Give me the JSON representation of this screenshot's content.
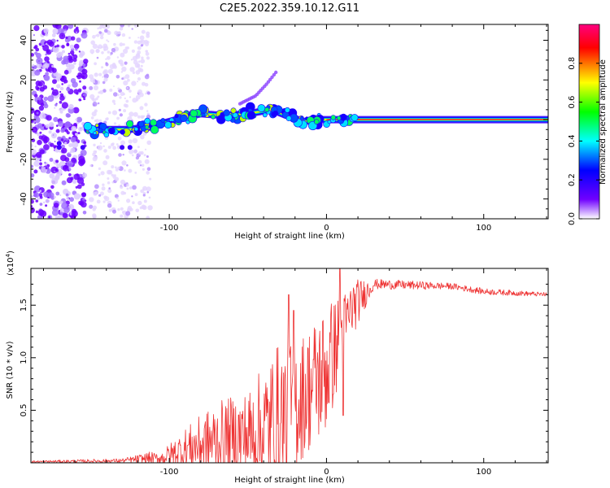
{
  "figure": {
    "title": "C2E5.2022.359.10.12.G11"
  },
  "chart_data": [
    {
      "type": "heatmap",
      "xlabel": "Height of straight line (km)",
      "ylabel": "Frequency (Hz)",
      "xlim": [
        -188,
        141
      ],
      "ylim": [
        -50,
        48
      ],
      "xticks": [
        -100,
        0,
        100
      ],
      "xtick_labels": [
        "-100",
        "0",
        "100"
      ],
      "yticks": [
        -40,
        -20,
        0,
        20,
        40
      ],
      "ytick_labels": [
        "-40",
        "-20",
        "0",
        "20",
        "40"
      ],
      "colorbar": {
        "label": "Normalized spectral amplitude",
        "range": [
          0.0,
          1.0
        ],
        "ticks": [
          0.0,
          0.2,
          0.4,
          0.6,
          0.8
        ],
        "tick_labels": [
          "0.0",
          "0.2",
          "0.4",
          "0.6",
          "0.8"
        ],
        "colors": [
          "#ffffff",
          "#7000ff",
          "#0000ff",
          "#00ffff",
          "#00ff00",
          "#ffff00",
          "#ff0000",
          "#ff0080"
        ]
      },
      "main_band": [
        {
          "x": -152,
          "f": -5
        },
        {
          "x": -140,
          "f": -5
        },
        {
          "x": -125,
          "f": -5
        },
        {
          "x": -110,
          "f": -3
        },
        {
          "x": -95,
          "f": 0
        },
        {
          "x": -80,
          "f": 3
        },
        {
          "x": -65,
          "f": 2
        },
        {
          "x": -50,
          "f": 3
        },
        {
          "x": -35,
          "f": 5
        },
        {
          "x": -25,
          "f": 2
        },
        {
          "x": -15,
          "f": -1
        },
        {
          "x": -5,
          "f": 0
        },
        {
          "x": 5,
          "f": 0
        },
        {
          "x": 141,
          "f": 0
        }
      ],
      "branch": [
        {
          "x": -55,
          "f": 8
        },
        {
          "x": -45,
          "f": 12
        },
        {
          "x": -38,
          "f": 18
        },
        {
          "x": -32,
          "f": 24
        }
      ]
    },
    {
      "type": "line",
      "xlabel": "Height of straight line (km)",
      "ylabel": "SNR (10 * v/v)",
      "y_multiplier": "(x10",
      "y_multiplier_exp": "4",
      "y_multiplier_close": ")",
      "xlim": [
        -188,
        141
      ],
      "ylim": [
        0,
        1.85
      ],
      "xticks": [
        -100,
        0,
        100
      ],
      "xtick_labels": [
        "-100",
        "0",
        "100"
      ],
      "yticks": [
        0.5,
        1.0,
        1.5
      ],
      "ytick_labels": [
        "0.5",
        "1.0",
        "1.5"
      ],
      "color": "#ee3333",
      "envelope": [
        {
          "x": -188,
          "base": 0.01,
          "amp": 0.01
        },
        {
          "x": -130,
          "base": 0.02,
          "amp": 0.02
        },
        {
          "x": -105,
          "base": 0.05,
          "amp": 0.08
        },
        {
          "x": -90,
          "base": 0.15,
          "amp": 0.25
        },
        {
          "x": -70,
          "base": 0.25,
          "amp": 0.45
        },
        {
          "x": -50,
          "base": 0.3,
          "amp": 0.55
        },
        {
          "x": -30,
          "base": 0.45,
          "amp": 1.0
        },
        {
          "x": -15,
          "base": 0.7,
          "amp": 0.75
        },
        {
          "x": 0,
          "base": 0.95,
          "amp": 0.8
        },
        {
          "x": 15,
          "base": 1.45,
          "amp": 0.3
        },
        {
          "x": 30,
          "base": 1.7,
          "amp": 0.05
        },
        {
          "x": 80,
          "base": 1.68,
          "amp": 0.03
        },
        {
          "x": 100,
          "base": 1.63,
          "amp": 0.03
        },
        {
          "x": 141,
          "base": 1.6,
          "amp": 0.02
        }
      ],
      "spikes": [
        {
          "x": 8.5,
          "y": 1.85
        },
        {
          "x": 10.5,
          "y": 0.45
        },
        {
          "x": -24,
          "y": 1.6
        },
        {
          "x": -21,
          "y": 1.45
        }
      ]
    }
  ]
}
